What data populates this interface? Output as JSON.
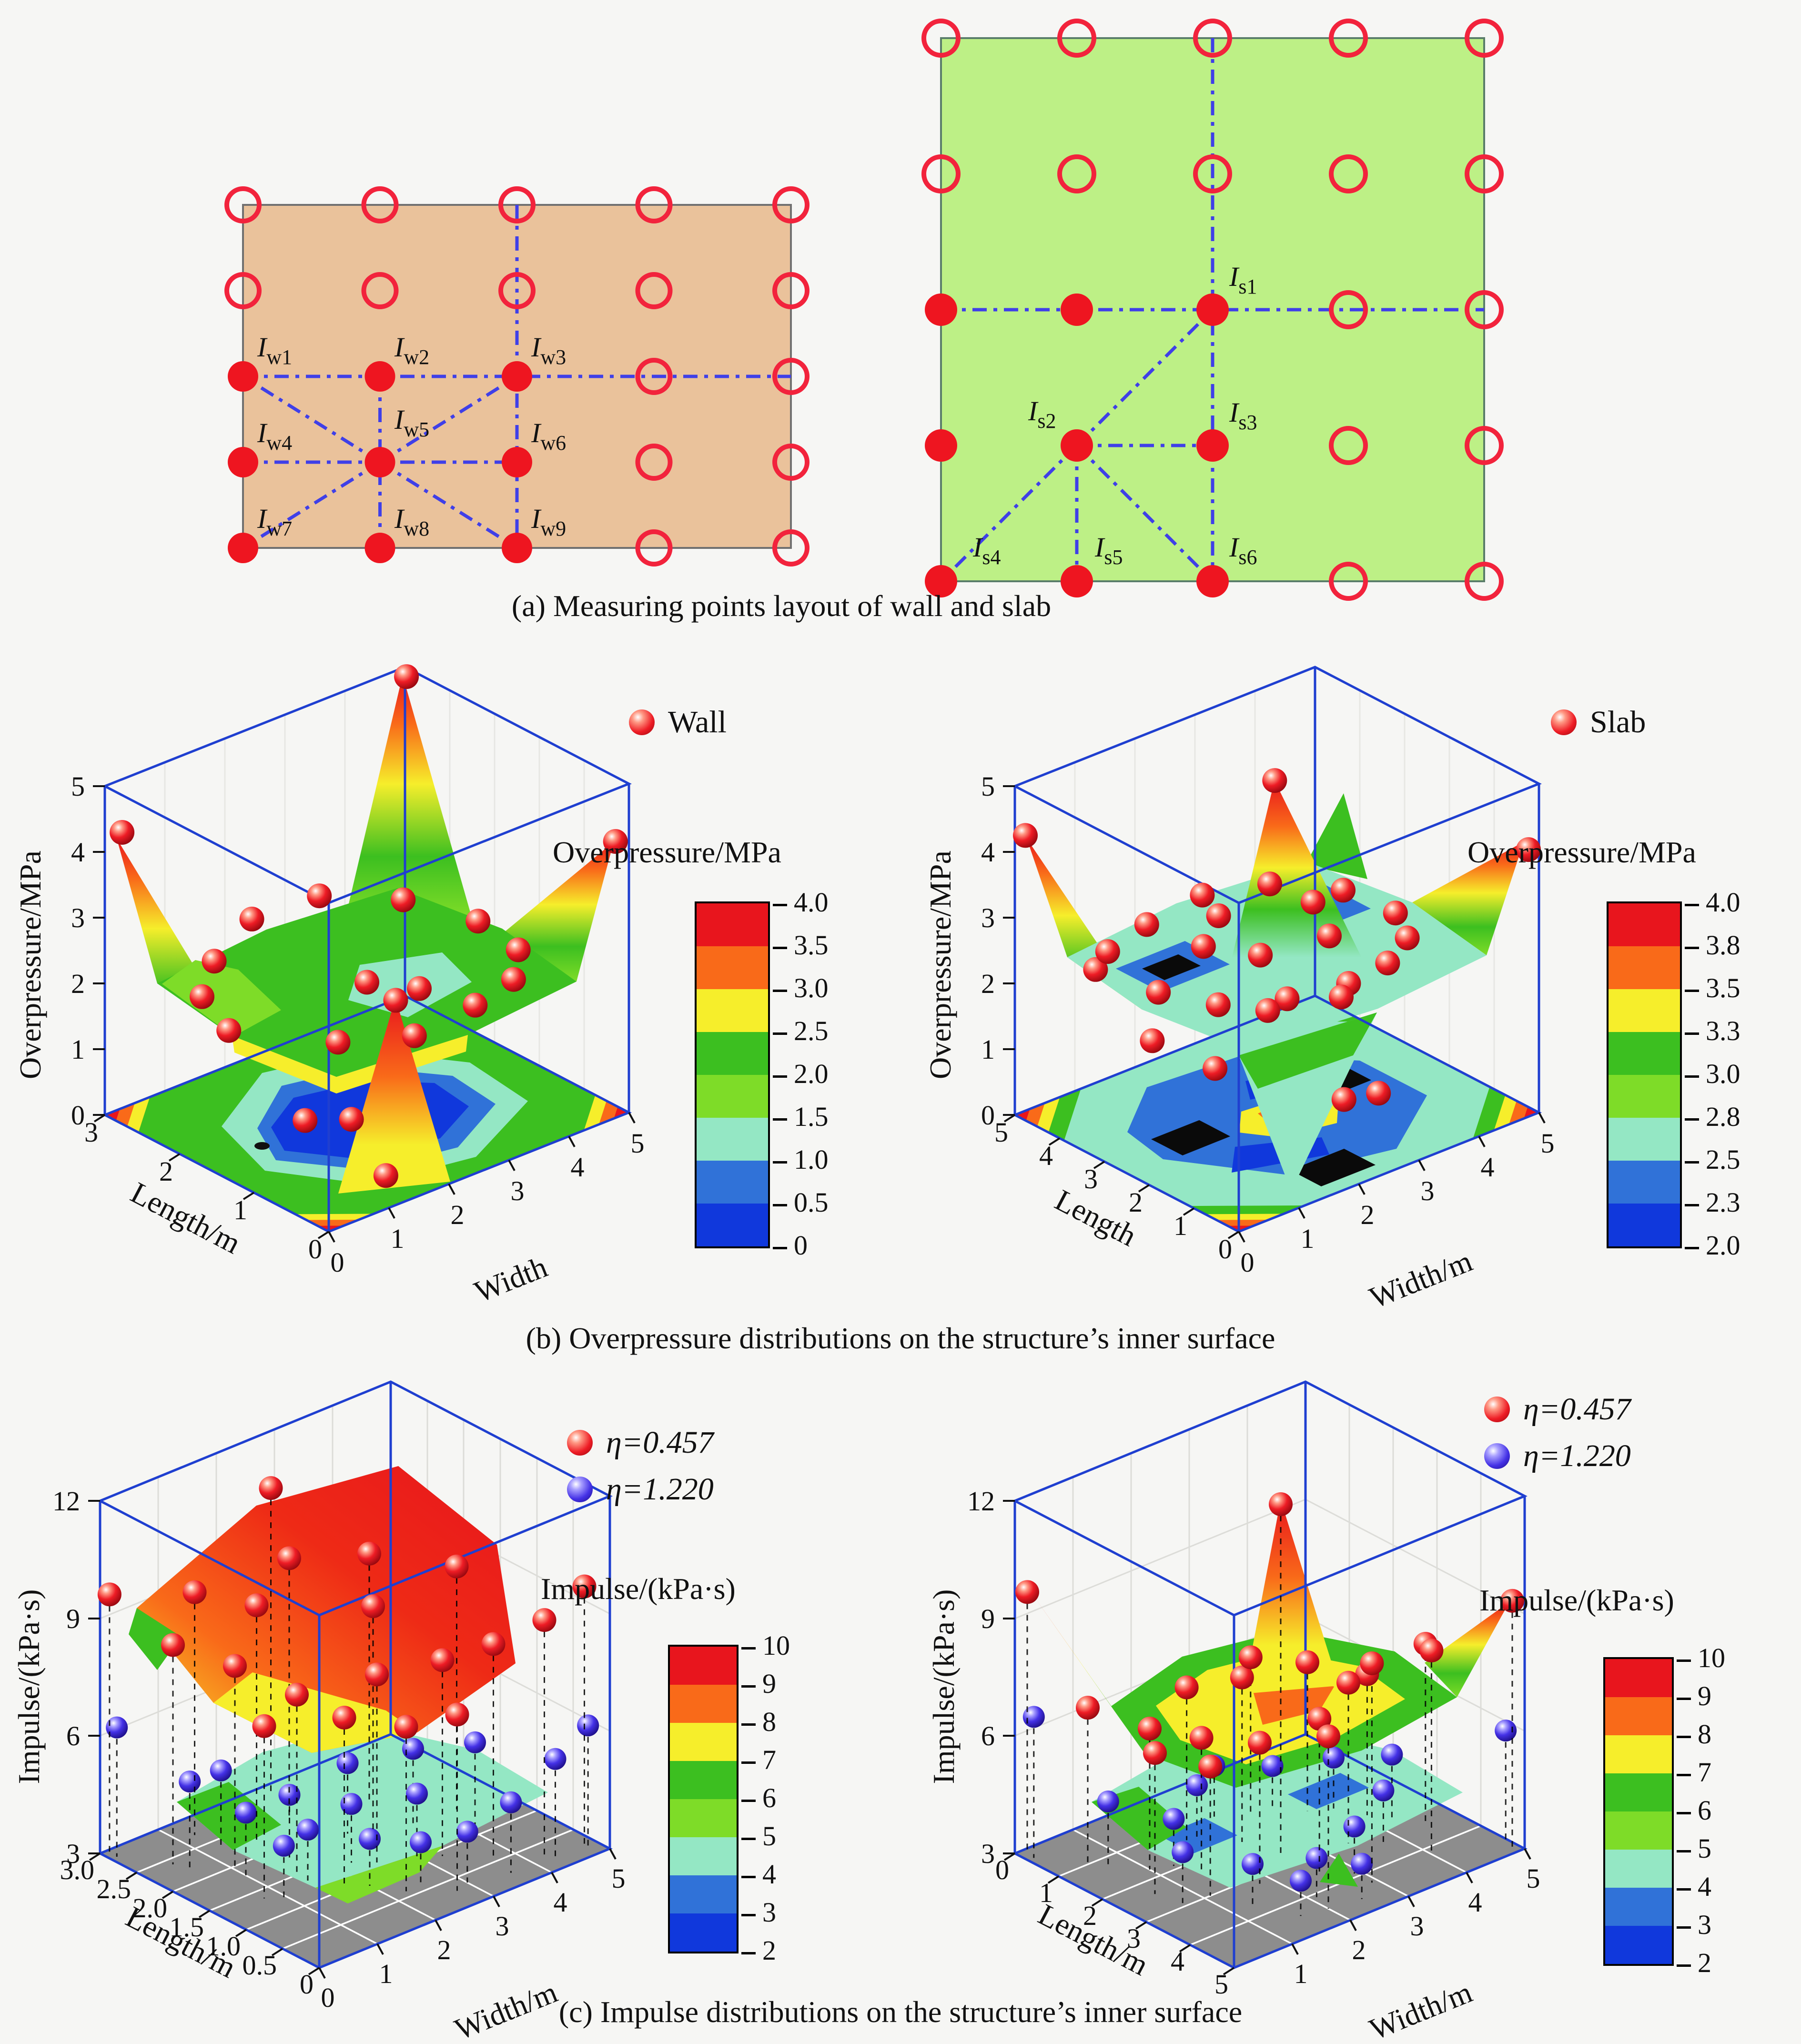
{
  "captions": {
    "a": "(a) Measuring points layout of wall and slab",
    "b": "(b) Overpressure distributions on the structure’s inner surface",
    "c": "(c) Impulse distributions on the structure’s inner surface"
  },
  "panel_a": {
    "wall": {
      "fill_color": "#eac29b",
      "grid": {
        "cols": 5,
        "rows": 5,
        "filled_block": "rows 3-5 x cols 1-3"
      },
      "labels": [
        {
          "main": "I",
          "sub": "w1"
        },
        {
          "main": "I",
          "sub": "w2"
        },
        {
          "main": "I",
          "sub": "w3"
        },
        {
          "main": "I",
          "sub": "w4"
        },
        {
          "main": "I",
          "sub": "w5"
        },
        {
          "main": "I",
          "sub": "w6"
        },
        {
          "main": "I",
          "sub": "w7"
        },
        {
          "main": "I",
          "sub": "w8"
        },
        {
          "main": "I",
          "sub": "w9"
        }
      ]
    },
    "slab": {
      "fill_color": "#bdf086",
      "grid": {
        "cols": 5,
        "rows": 5,
        "filled_block": "rows 3-5 x cols 1-3"
      },
      "labels": [
        {
          "main": "I",
          "sub": "s1"
        },
        {
          "main": "I",
          "sub": "s2"
        },
        {
          "main": "I",
          "sub": "s3"
        },
        {
          "main": "I",
          "sub": "s4"
        },
        {
          "main": "I",
          "sub": "s5"
        },
        {
          "main": "I",
          "sub": "s6"
        }
      ]
    },
    "point_colors": {
      "hollow_stroke": "#f2233c",
      "filled": "#ee1520",
      "dash_line": "#3f3fe8"
    }
  },
  "chart_data": [
    {
      "id": "wall-overpressure",
      "type": "3d-surface-with-contour-floor",
      "legend": [
        {
          "label": "Wall",
          "marker_color": "#ee1c25"
        }
      ],
      "x_axis": {
        "label": "Width",
        "ticks": [
          "0",
          "1",
          "2",
          "3",
          "4",
          "5"
        ],
        "range": [
          0,
          5
        ]
      },
      "y_axis": {
        "label": "Length/m",
        "ticks": [
          "3",
          "2",
          "1",
          "0"
        ],
        "range": [
          0,
          3
        ]
      },
      "z_axis": {
        "label": "Overpressure/MPa",
        "ticks": [
          "0",
          "1",
          "2",
          "3",
          "4",
          "5"
        ],
        "range": [
          0,
          5
        ]
      },
      "colorbar": {
        "title": "Overpressure/MPa",
        "ticks": [
          "4.0",
          "3.5",
          "3.0",
          "2.5",
          "2.0",
          "1.5",
          "1.0",
          "0.5",
          "0"
        ],
        "band_colors": [
          "#e8151d",
          "#f96a19",
          "#f6ee2b",
          "#3cbf20",
          "#7edc28",
          "#94e7c4",
          "#3072d8",
          "#1038dc"
        ]
      },
      "series": [
        {
          "name": "Wall",
          "unit": "MPa",
          "points_width_length_value": [
            [
              0.1,
              2.85,
              4.35
            ],
            [
              4.9,
              0.1,
              4.1
            ],
            [
              4.9,
              2.9,
              4.95
            ],
            [
              1.55,
              0.35,
              2.75
            ],
            [
              0.2,
              1.5,
              2.1
            ],
            [
              0.9,
              0.6,
              2.2
            ],
            [
              1.8,
              0.3,
              2.15
            ],
            [
              2.75,
              0.25,
              2.3
            ],
            [
              3.7,
              0.5,
              2.2
            ],
            [
              4.4,
              1.0,
              2.1
            ],
            [
              4.6,
              1.7,
              2.05
            ],
            [
              4.1,
              2.3,
              2.2
            ],
            [
              3.2,
              2.7,
              2.35
            ],
            [
              2.2,
              2.8,
              2.3
            ],
            [
              1.2,
              2.5,
              2.2
            ],
            [
              0.5,
              2.1,
              2.15
            ],
            [
              2.5,
              1.5,
              2.0
            ],
            [
              3.0,
              1.2,
              1.9
            ],
            [
              0.6,
              0.8,
              1.0
            ],
            [
              1.0,
              0.5,
              1.05
            ],
            [
              1.2,
              0.2,
              0.3
            ]
          ]
        }
      ]
    },
    {
      "id": "slab-overpressure",
      "type": "3d-surface-with-contour-floor",
      "legend": [
        {
          "label": "Slab",
          "marker_color": "#ee1c25"
        }
      ],
      "x_axis": {
        "label": "Width/m",
        "ticks": [
          "0",
          "1",
          "2",
          "3",
          "4",
          "5"
        ],
        "range": [
          0,
          5
        ]
      },
      "y_axis": {
        "label": "Length",
        "ticks": [
          "5",
          "4",
          "3",
          "2",
          "1",
          "0"
        ],
        "range": [
          0,
          5
        ]
      },
      "z_axis": {
        "label": "Overpressure/MPa",
        "ticks": [
          "0",
          "1",
          "2",
          "3",
          "4",
          "5"
        ],
        "range": [
          0,
          5
        ]
      },
      "colorbar": {
        "title": "Overpressure/MPa",
        "ticks": [
          "4.0",
          "3.8",
          "3.5",
          "3.3",
          "3.0",
          "2.8",
          "2.5",
          "2.3",
          "2.0"
        ],
        "band_colors": [
          "#e8151d",
          "#f96a19",
          "#f6ee2b",
          "#3cbf20",
          "#7edc28",
          "#94e7c4",
          "#3072d8",
          "#1038dc"
        ]
      },
      "series": [
        {
          "name": "Slab",
          "unit": "MPa",
          "points_width_length_value": [
            [
              0.1,
              4.9,
              4.25
            ],
            [
              4.9,
              0.1,
              4.0
            ],
            [
              2.5,
              2.55,
              5.05
            ],
            [
              0.3,
              3.6,
              2.6
            ],
            [
              0.6,
              2.6,
              2.5
            ],
            [
              1.0,
              1.8,
              2.45
            ],
            [
              1.7,
              1.2,
              2.5
            ],
            [
              2.5,
              0.9,
              2.55
            ],
            [
              3.3,
              1.1,
              2.5
            ],
            [
              4.0,
              1.6,
              2.45
            ],
            [
              4.4,
              2.4,
              2.4
            ],
            [
              4.2,
              3.3,
              2.5
            ],
            [
              3.5,
              4.0,
              2.6
            ],
            [
              2.6,
              4.3,
              2.65
            ],
            [
              1.6,
              4.2,
              2.6
            ],
            [
              0.8,
              4.0,
              2.55
            ],
            [
              1.5,
              2.8,
              2.8
            ],
            [
              2.0,
              2.2,
              2.7
            ],
            [
              3.0,
              2.0,
              2.7
            ],
            [
              3.4,
              2.9,
              2.75
            ],
            [
              2.2,
              3.4,
              2.8
            ],
            [
              1.9,
              1.9,
              2.0
            ],
            [
              2.9,
              1.6,
              1.95
            ],
            [
              2.2,
              0.6,
              1.0
            ],
            [
              2.7,
              0.5,
              0.95
            ],
            [
              0.35,
              1.0,
              2.0
            ],
            [
              0.2,
              2.2,
              2.05
            ]
          ]
        }
      ]
    },
    {
      "id": "wall-impulse",
      "type": "3d-two-surfaces-with-point-stems",
      "legend": [
        {
          "label": "η=0.457",
          "marker_color": "#ee1c25"
        },
        {
          "label": "η=1.220",
          "marker_color": "#4431e6"
        }
      ],
      "x_axis": {
        "label": "Width/m",
        "ticks": [
          "0",
          "1",
          "2",
          "3",
          "4",
          "5"
        ],
        "range": [
          0,
          5
        ]
      },
      "y_axis": {
        "label": "Length/m",
        "ticks": [
          "0",
          "0.5",
          "1.0",
          "1.5",
          "2.0",
          "2.5",
          "3.0"
        ],
        "range": [
          0,
          3
        ]
      },
      "z_axis": {
        "label": "Impulse/(kPa·s)",
        "ticks": [
          "3",
          "6",
          "9",
          "12"
        ],
        "range": [
          3,
          12
        ]
      },
      "colorbar": {
        "title": "Impulse/(kPa·s)",
        "ticks": [
          "10",
          "9",
          "8",
          "7",
          "6",
          "5",
          "4",
          "3",
          "2"
        ],
        "band_colors": [
          "#e8151d",
          "#f96a19",
          "#f6ee2b",
          "#3cbf20",
          "#7edc28",
          "#94e7c4",
          "#3072d8",
          "#1038dc"
        ]
      },
      "series": [
        {
          "name": "η=0.457",
          "unit": "kPa·s",
          "points_width_length_value": [
            [
              0.1,
              2.95,
              9.6
            ],
            [
              0.5,
              2.4,
              8.6
            ],
            [
              1.0,
              1.95,
              8.2
            ],
            [
              1.5,
              1.5,
              7.6
            ],
            [
              0.75,
              1.35,
              7.4
            ],
            [
              1.75,
              1.05,
              7.3
            ],
            [
              2.25,
              0.6,
              7.2
            ],
            [
              2.75,
              0.3,
              7.5
            ],
            [
              2.5,
              1.2,
              7.8
            ],
            [
              3.25,
              0.9,
              8.0
            ],
            [
              3.75,
              0.6,
              8.4
            ],
            [
              4.25,
              0.3,
              9.0
            ],
            [
              4.75,
              0.15,
              9.7
            ],
            [
              3.0,
              1.65,
              8.8
            ],
            [
              3.5,
              2.1,
              9.4
            ],
            [
              2.5,
              2.4,
              9.6
            ],
            [
              2.75,
              2.85,
              10.8
            ],
            [
              1.75,
              2.25,
              9.0
            ],
            [
              1.25,
              2.7,
              9.2
            ],
            [
              4.25,
              1.5,
              9.2
            ]
          ]
        },
        {
          "name": "η=1.220",
          "unit": "kPa·s",
          "points_width_length_value": [
            [
              0.1,
              2.85,
              6.3
            ],
            [
              0.6,
              2.25,
              5.2
            ],
            [
              1.0,
              1.8,
              4.6
            ],
            [
              1.5,
              1.35,
              4.3
            ],
            [
              0.9,
              1.2,
              4.4
            ],
            [
              2.0,
              0.9,
              4.2
            ],
            [
              2.5,
              0.6,
              4.1
            ],
            [
              3.0,
              0.36,
              4.3
            ],
            [
              3.6,
              0.24,
              4.8
            ],
            [
              4.25,
              0.15,
              5.6
            ],
            [
              4.75,
              0.1,
              6.2
            ],
            [
              2.25,
              1.35,
              4.5
            ],
            [
              3.0,
              1.05,
              4.6
            ],
            [
              2.75,
              1.8,
              4.8
            ],
            [
              3.5,
              1.5,
              5.0
            ],
            [
              4.0,
              1.05,
              5.3
            ],
            [
              1.75,
              1.8,
              4.6
            ],
            [
              1.25,
              2.34,
              5.0
            ]
          ]
        }
      ]
    },
    {
      "id": "slab-impulse",
      "type": "3d-two-surfaces-with-point-stems",
      "legend": [
        {
          "label": "η=0.457",
          "marker_color": "#ee1c25"
        },
        {
          "label": "η=1.220",
          "marker_color": "#4431e6"
        }
      ],
      "x_axis": {
        "label": "Width/m",
        "ticks": [
          "1",
          "2",
          "3",
          "4",
          "5"
        ],
        "range": [
          0,
          5
        ]
      },
      "y_axis": {
        "label": "Length/m",
        "ticks": [
          "0",
          "1",
          "2",
          "3",
          "4",
          "5"
        ],
        "range": [
          0,
          5
        ]
      },
      "z_axis": {
        "label": "Impulse/(kPa·s)",
        "ticks": [
          "3",
          "6",
          "9",
          "12"
        ],
        "range": [
          3,
          12
        ]
      },
      "colorbar": {
        "title": "Impulse/(kPa·s)",
        "ticks": [
          "10",
          "9",
          "8",
          "7",
          "6",
          "5",
          "4",
          "3",
          "2"
        ],
        "band_colors": [
          "#e8151d",
          "#f96a19",
          "#f6ee2b",
          "#3cbf20",
          "#7edc28",
          "#94e7c4",
          "#3072d8",
          "#1038dc"
        ]
      },
      "series": [
        {
          "name": "η=0.457",
          "unit": "kPa·s",
          "points_width_length_value": [
            [
              0.1,
              0.15,
              9.7
            ],
            [
              4.9,
              4.85,
              9.3
            ],
            [
              2.5,
              2.75,
              12.0
            ],
            [
              0.5,
              1.0,
              7.0
            ],
            [
              1.0,
              1.75,
              6.6
            ],
            [
              1.9,
              1.4,
              6.9
            ],
            [
              1.4,
              2.4,
              6.5
            ],
            [
              2.4,
              2.0,
              7.2
            ],
            [
              3.0,
              1.4,
              7.0
            ],
            [
              3.6,
              1.9,
              6.8
            ],
            [
              4.1,
              2.6,
              6.6
            ],
            [
              3.4,
              3.1,
              7.1
            ],
            [
              2.6,
              3.5,
              6.9
            ],
            [
              1.8,
              3.2,
              6.6
            ],
            [
              1.1,
              3.0,
              6.3
            ],
            [
              0.6,
              2.4,
              6.6
            ],
            [
              4.5,
              3.4,
              7.6
            ],
            [
              4.0,
              4.2,
              8.2
            ],
            [
              2.9,
              4.3,
              8.6
            ],
            [
              2.0,
              4.5,
              7.4
            ]
          ]
        },
        {
          "name": "η=1.220",
          "unit": "kPa·s",
          "points_width_length_value": [
            [
              0.1,
              0.3,
              6.6
            ],
            [
              4.9,
              4.7,
              5.9
            ],
            [
              0.7,
              1.2,
              4.6
            ],
            [
              1.3,
              1.9,
              4.2
            ],
            [
              2.0,
              1.5,
              4.4
            ],
            [
              2.6,
              1.1,
              4.3
            ],
            [
              3.3,
              1.5,
              4.1
            ],
            [
              3.9,
              2.1,
              4.3
            ],
            [
              4.3,
              2.9,
              4.6
            ],
            [
              3.7,
              3.5,
              4.4
            ],
            [
              2.9,
              3.9,
              4.2
            ],
            [
              2.1,
              4.1,
              4.0
            ],
            [
              1.3,
              3.7,
              4.1
            ],
            [
              0.7,
              2.9,
              4.3
            ],
            [
              2.5,
              4.6,
              3.9
            ],
            [
              1.6,
              4.4,
              3.9
            ]
          ]
        }
      ]
    }
  ]
}
